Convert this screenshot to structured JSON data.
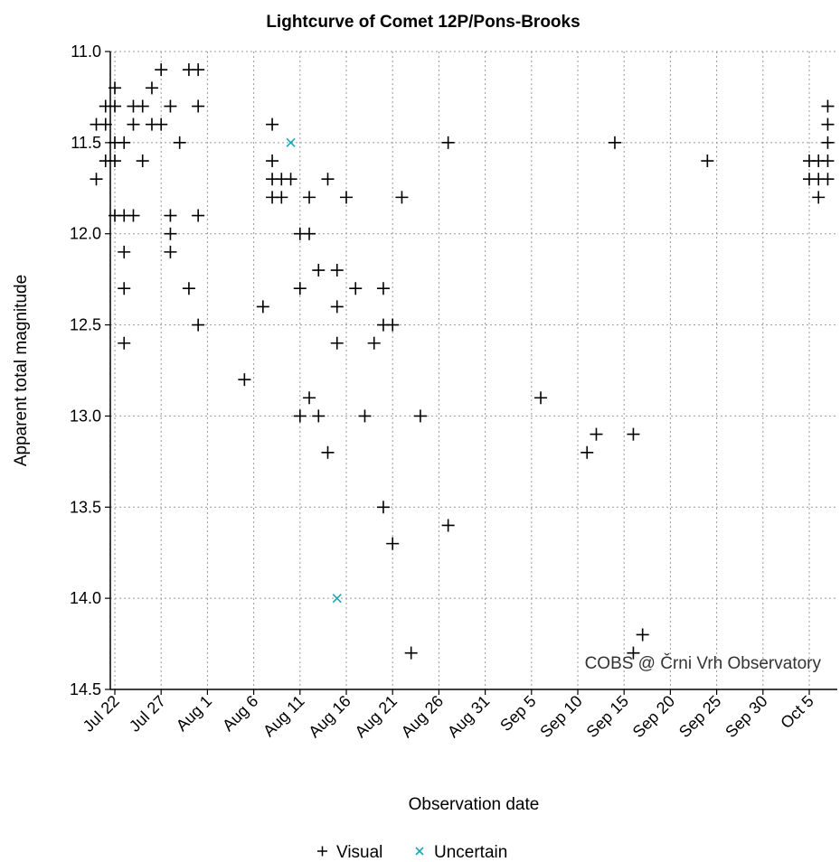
{
  "chart_data": {
    "type": "scatter",
    "title": "Lightcurve of Comet 12P/Pons-Brooks",
    "xlabel": "Observation date",
    "ylabel": "Apparent total magnitude",
    "x_ticks": [
      "Jul 22",
      "Jul 27",
      "Aug 1",
      "Aug 6",
      "Aug 11",
      "Aug 16",
      "Aug 21",
      "Aug 26",
      "Aug 31",
      "Sep 5",
      "Sep 10",
      "Sep 15",
      "Sep 20",
      "Sep 25",
      "Sep 30",
      "Oct 5"
    ],
    "y_ticks": [
      "11.0",
      "11.5",
      "12.0",
      "12.5",
      "13.0",
      "13.5",
      "14.0",
      "14.5"
    ],
    "ylim": [
      11.0,
      14.5
    ],
    "y_inverted": true,
    "xlim": [
      "Jul 21",
      "Oct 6"
    ],
    "grid": true,
    "legend_position": "bottom",
    "annotation": "COBS @ Črni Vrh Observatory",
    "colors": {
      "Visual": "#000000",
      "Uncertain": "#17a8b8",
      "grid": "#999999"
    },
    "series": [
      {
        "name": "Visual",
        "marker": "+",
        "points": [
          [
            "Jul 20",
            11.4
          ],
          [
            "Jul 20",
            11.7
          ],
          [
            "Jul 21",
            11.4
          ],
          [
            "Jul 21",
            11.3
          ],
          [
            "Jul 21",
            11.6
          ],
          [
            "Jul 22",
            11.2
          ],
          [
            "Jul 22",
            11.6
          ],
          [
            "Jul 22",
            11.3
          ],
          [
            "Jul 22",
            11.9
          ],
          [
            "Jul 22",
            11.5
          ],
          [
            "Jul 23",
            11.5
          ],
          [
            "Jul 23",
            11.9
          ],
          [
            "Jul 23",
            12.1
          ],
          [
            "Jul 23",
            12.3
          ],
          [
            "Jul 23",
            12.6
          ],
          [
            "Jul 24",
            11.3
          ],
          [
            "Jul 24",
            11.4
          ],
          [
            "Jul 24",
            11.9
          ],
          [
            "Jul 25",
            11.3
          ],
          [
            "Jul 25",
            11.6
          ],
          [
            "Jul 26",
            11.2
          ],
          [
            "Jul 26",
            11.4
          ],
          [
            "Jul 27",
            11.1
          ],
          [
            "Jul 27",
            11.4
          ],
          [
            "Jul 28",
            11.3
          ],
          [
            "Jul 28",
            11.9
          ],
          [
            "Jul 28",
            12.0
          ],
          [
            "Jul 28",
            12.1
          ],
          [
            "Jul 29",
            11.5
          ],
          [
            "Jul 30",
            11.1
          ],
          [
            "Jul 30",
            12.3
          ],
          [
            "Jul 31",
            11.1
          ],
          [
            "Jul 31",
            11.3
          ],
          [
            "Jul 31",
            11.9
          ],
          [
            "Jul 31",
            12.5
          ],
          [
            "Aug 5",
            12.8
          ],
          [
            "Aug 7",
            12.4
          ],
          [
            "Aug 8",
            11.4
          ],
          [
            "Aug 8",
            11.6
          ],
          [
            "Aug 8",
            11.7
          ],
          [
            "Aug 8",
            11.8
          ],
          [
            "Aug 9",
            11.7
          ],
          [
            "Aug 9",
            11.8
          ],
          [
            "Aug 10",
            11.7
          ],
          [
            "Aug 11",
            12.0
          ],
          [
            "Aug 11",
            12.3
          ],
          [
            "Aug 11",
            13.0
          ],
          [
            "Aug 12",
            11.8
          ],
          [
            "Aug 12",
            12.0
          ],
          [
            "Aug 12",
            12.9
          ],
          [
            "Aug 13",
            12.2
          ],
          [
            "Aug 13",
            13.0
          ],
          [
            "Aug 14",
            11.7
          ],
          [
            "Aug 14",
            13.2
          ],
          [
            "Aug 15",
            12.2
          ],
          [
            "Aug 15",
            12.4
          ],
          [
            "Aug 15",
            12.6
          ],
          [
            "Aug 16",
            11.8
          ],
          [
            "Aug 17",
            12.3
          ],
          [
            "Aug 18",
            13.0
          ],
          [
            "Aug 19",
            12.6
          ],
          [
            "Aug 20",
            12.3
          ],
          [
            "Aug 20",
            12.5
          ],
          [
            "Aug 20",
            13.5
          ],
          [
            "Aug 21",
            12.5
          ],
          [
            "Aug 21",
            13.7
          ],
          [
            "Aug 22",
            11.8
          ],
          [
            "Aug 23",
            14.3
          ],
          [
            "Aug 24",
            13.0
          ],
          [
            "Aug 27",
            11.5
          ],
          [
            "Aug 27",
            13.6
          ],
          [
            "Sep 6",
            12.9
          ],
          [
            "Sep 11",
            13.2
          ],
          [
            "Sep 12",
            13.1
          ],
          [
            "Sep 14",
            11.5
          ],
          [
            "Sep 16",
            13.1
          ],
          [
            "Sep 16",
            14.3
          ],
          [
            "Sep 17",
            14.2
          ],
          [
            "Sep 24",
            11.6
          ],
          [
            "Oct 5",
            11.6
          ],
          [
            "Oct 5",
            11.7
          ],
          [
            "Oct 6",
            11.6
          ],
          [
            "Oct 6",
            11.7
          ],
          [
            "Oct 6",
            11.8
          ],
          [
            "Oct 7",
            11.6
          ],
          [
            "Oct 7",
            11.7
          ],
          [
            "Oct 7",
            11.3
          ],
          [
            "Oct 7",
            11.4
          ],
          [
            "Oct 7",
            11.5
          ]
        ]
      },
      {
        "name": "Uncertain",
        "marker": "x",
        "points": [
          [
            "Aug 10",
            11.5
          ],
          [
            "Aug 15",
            14.0
          ]
        ]
      }
    ]
  }
}
